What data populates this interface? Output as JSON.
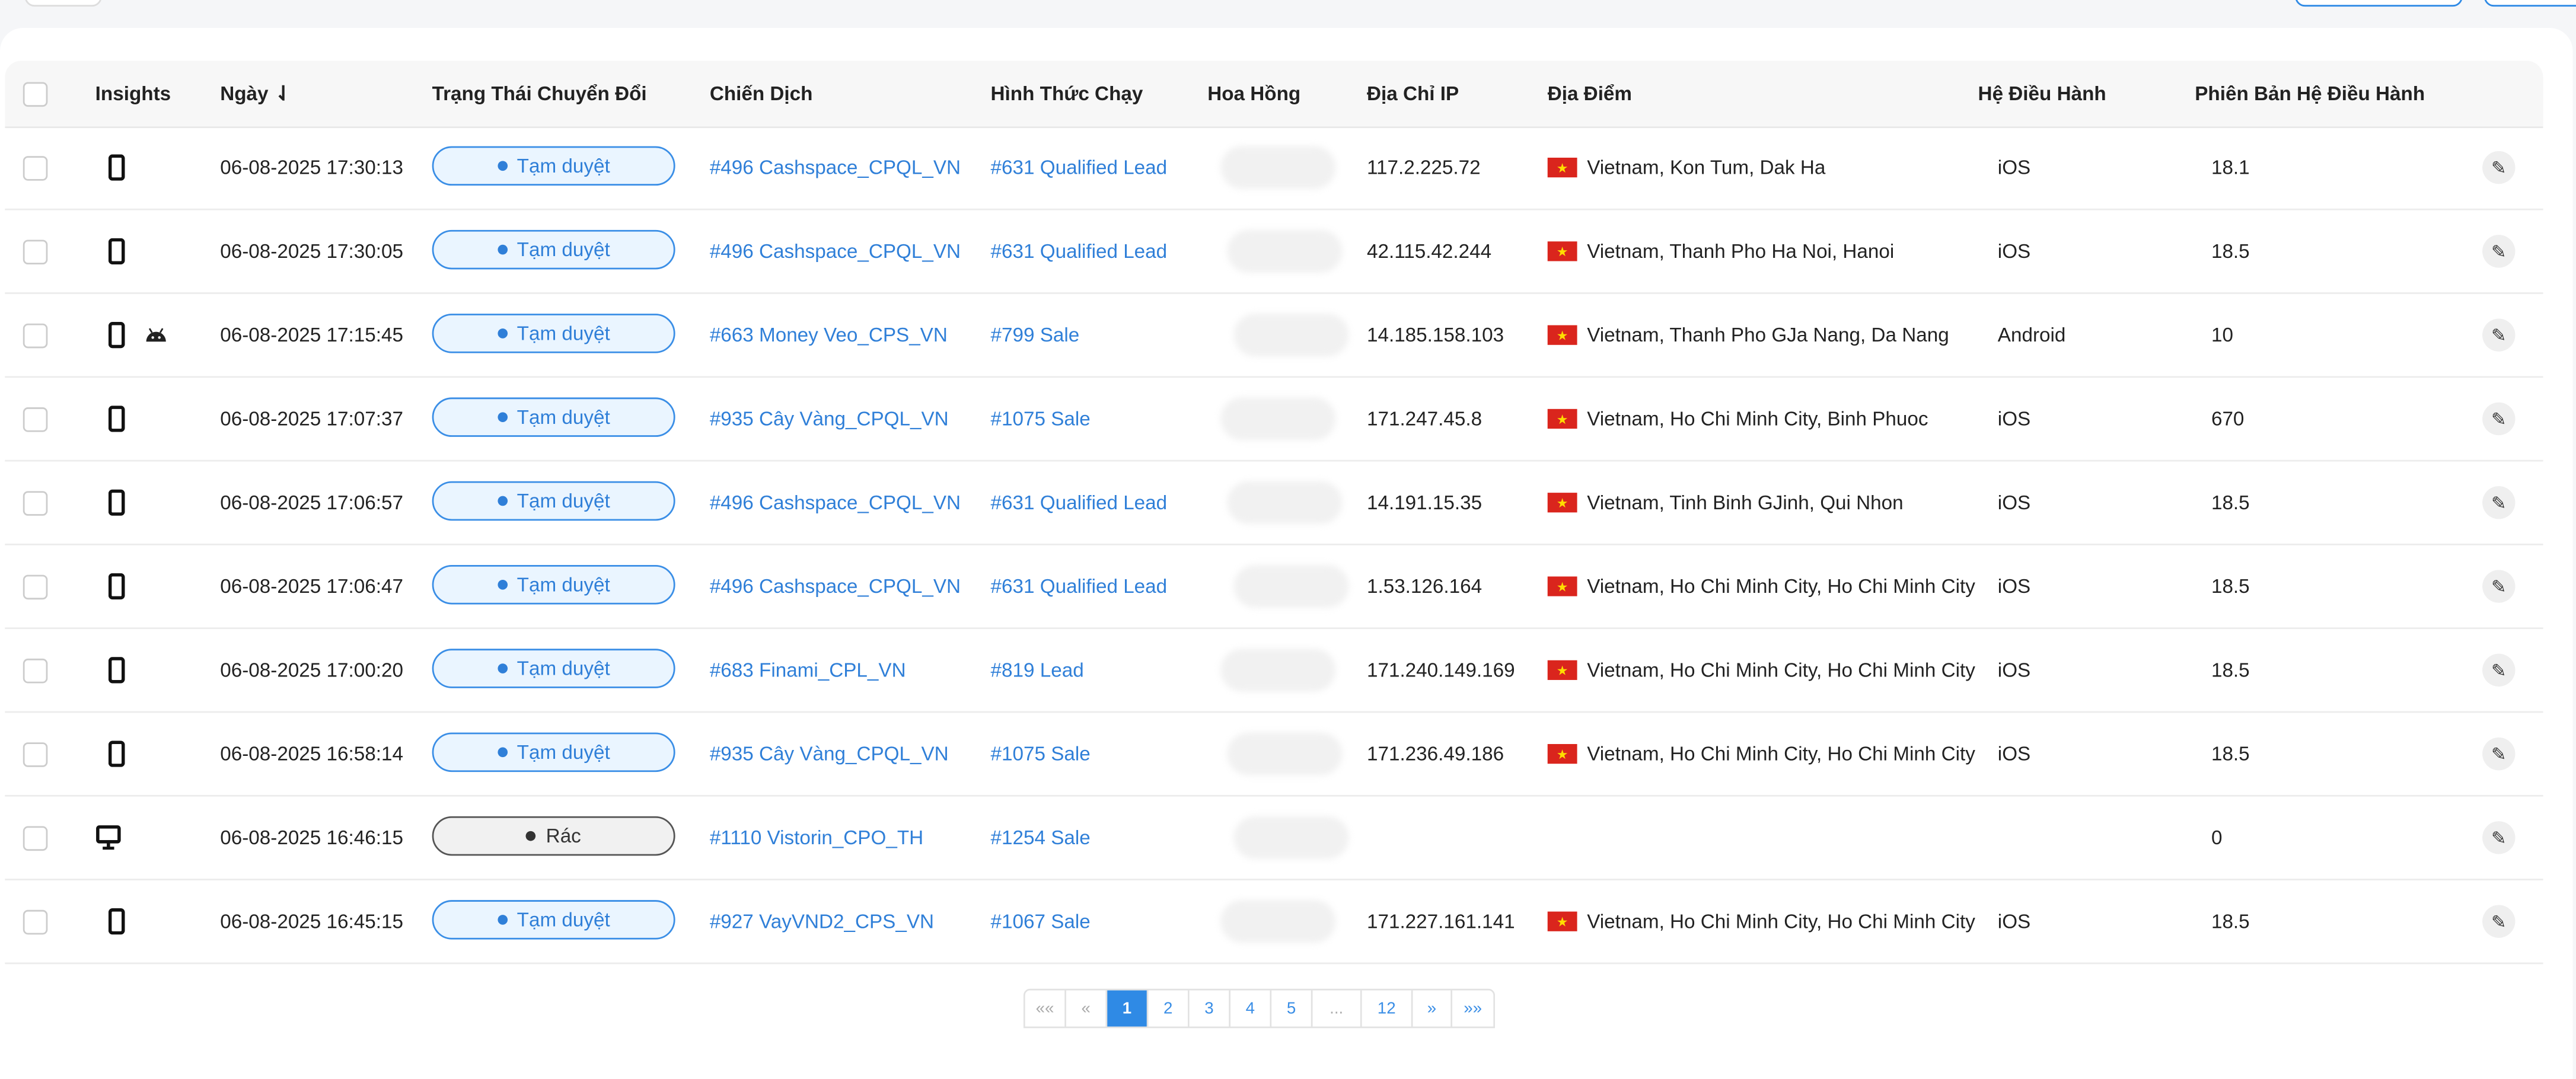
{
  "accent": "#2f8ae5",
  "table": {
    "headers": {
      "insights": "Insights",
      "date": "Ngày",
      "sort_icon": "sort-desc-icon",
      "status": "Trạng Thái Chuyển Đổi",
      "campaign": "Chiến Dịch",
      "run_type": "Hình Thức Chạy",
      "commission": "Hoa Hồng",
      "ip": "Địa Chỉ IP",
      "location": "Địa Điểm",
      "os": "Hệ Điều Hành",
      "os_version": "Phiên Bản Hệ Điều Hành"
    },
    "rows": [
      {
        "devices": [
          "mobile"
        ],
        "date": "06-08-2025 17:30:13",
        "status": "Tạm duyệt",
        "status_type": "pending",
        "campaign": "#496 Cashspace_CPQL_VN",
        "run_type": "#631 Qualified Lead",
        "ip": "117.2.225.72",
        "flag": "vn",
        "location": "Vietnam, Kon Tum, Dak Ha",
        "os": "iOS",
        "os_version": "18.1"
      },
      {
        "devices": [
          "mobile"
        ],
        "date": "06-08-2025 17:30:05",
        "status": "Tạm duyệt",
        "status_type": "pending",
        "campaign": "#496 Cashspace_CPQL_VN",
        "run_type": "#631 Qualified Lead",
        "ip": "42.115.42.244",
        "flag": "vn",
        "location": "Vietnam, Thanh Pho Ha Noi, Hanoi",
        "os": "iOS",
        "os_version": "18.5"
      },
      {
        "devices": [
          "mobile",
          "android"
        ],
        "date": "06-08-2025 17:15:45",
        "status": "Tạm duyệt",
        "status_type": "pending",
        "campaign": "#663 Money Veo_CPS_VN",
        "run_type": "#799 Sale",
        "ip": "14.185.158.103",
        "flag": "vn",
        "location": "Vietnam, Thanh Pho GJa Nang, Da Nang",
        "os": "Android",
        "os_version": "10"
      },
      {
        "devices": [
          "mobile"
        ],
        "date": "06-08-2025 17:07:37",
        "status": "Tạm duyệt",
        "status_type": "pending",
        "campaign": "#935 Cây Vàng_CPQL_VN",
        "run_type": "#1075 Sale",
        "ip": "171.247.45.8",
        "flag": "vn",
        "location": "Vietnam, Ho Chi Minh City, Binh Phuoc",
        "os": "iOS",
        "os_version": "670"
      },
      {
        "devices": [
          "mobile"
        ],
        "date": "06-08-2025 17:06:57",
        "status": "Tạm duyệt",
        "status_type": "pending",
        "campaign": "#496 Cashspace_CPQL_VN",
        "run_type": "#631 Qualified Lead",
        "ip": "14.191.15.35",
        "flag": "vn",
        "location": "Vietnam, Tinh Binh GJinh, Qui Nhon",
        "os": "iOS",
        "os_version": "18.5"
      },
      {
        "devices": [
          "mobile"
        ],
        "date": "06-08-2025 17:06:47",
        "status": "Tạm duyệt",
        "status_type": "pending",
        "campaign": "#496 Cashspace_CPQL_VN",
        "run_type": "#631 Qualified Lead",
        "ip": "1.53.126.164",
        "flag": "vn",
        "location": "Vietnam, Ho Chi Minh City, Ho Chi Minh City",
        "os": "iOS",
        "os_version": "18.5"
      },
      {
        "devices": [
          "mobile"
        ],
        "date": "06-08-2025 17:00:20",
        "status": "Tạm duyệt",
        "status_type": "pending",
        "campaign": "#683 Finami_CPL_VN",
        "run_type": "#819 Lead",
        "ip": "171.240.149.169",
        "flag": "vn",
        "location": "Vietnam, Ho Chi Minh City, Ho Chi Minh City",
        "os": "iOS",
        "os_version": "18.5"
      },
      {
        "devices": [
          "mobile"
        ],
        "date": "06-08-2025 16:58:14",
        "status": "Tạm duyệt",
        "status_type": "pending",
        "campaign": "#935 Cây Vàng_CPQL_VN",
        "run_type": "#1075 Sale",
        "ip": "171.236.49.186",
        "flag": "vn",
        "location": "Vietnam, Ho Chi Minh City, Ho Chi Minh City",
        "os": "iOS",
        "os_version": "18.5"
      },
      {
        "devices": [
          "desktop"
        ],
        "date": "06-08-2025 16:46:15",
        "status": "Rác",
        "status_type": "trash",
        "campaign": "#1110 Vistorin_CPO_TH",
        "run_type": "#1254 Sale",
        "ip": "",
        "flag": "",
        "location": "",
        "os": "",
        "os_version": "0"
      },
      {
        "devices": [
          "mobile"
        ],
        "date": "06-08-2025 16:45:15",
        "status": "Tạm duyệt",
        "status_type": "pending",
        "campaign": "#927 VayVND2_CPS_VN",
        "run_type": "#1067 Sale",
        "ip": "171.227.161.141",
        "flag": "vn",
        "location": "Vietnam, Ho Chi Minh City, Ho Chi Minh City",
        "os": "iOS",
        "os_version": "18.5"
      }
    ]
  },
  "pagination": {
    "first": "««",
    "prev": "«",
    "pages": [
      "1",
      "2",
      "3",
      "4",
      "5",
      "...",
      "12"
    ],
    "current": "1",
    "next": "»",
    "last": "»»"
  }
}
